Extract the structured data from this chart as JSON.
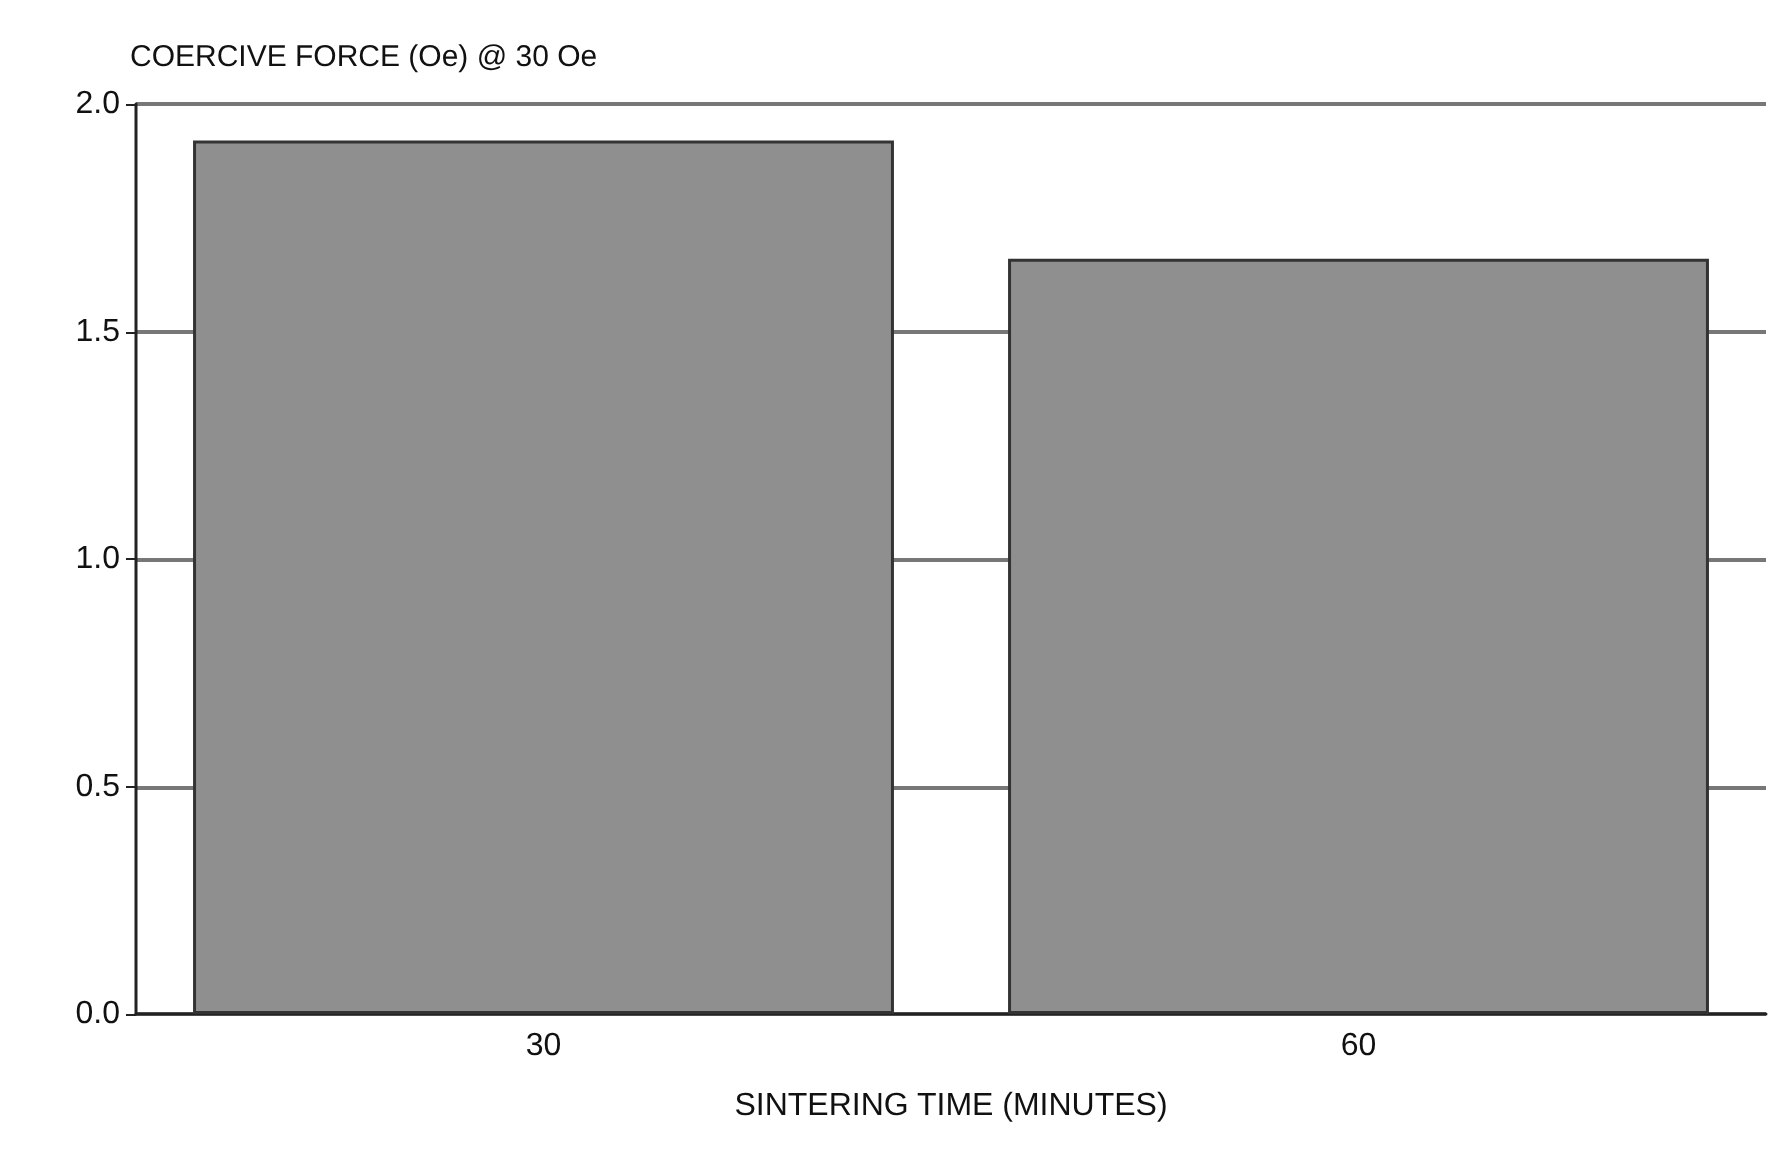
{
  "chart_data": {
    "type": "bar",
    "title": "COERCIVE FORCE (Oe) @ 30 Oe",
    "xlabel": "SINTERING TIME (MINUTES)",
    "categories": [
      "30",
      "60"
    ],
    "values": [
      1.92,
      1.66
    ],
    "color": "#8f8f8f",
    "ylim": [
      0,
      2
    ],
    "yticks": [
      {
        "value": 0,
        "label": "0.0"
      },
      0.5,
      {
        "value": 1,
        "label": "1.0"
      },
      1.5,
      {
        "value": 2,
        "label": "2.0"
      }
    ],
    "grid": "y"
  }
}
